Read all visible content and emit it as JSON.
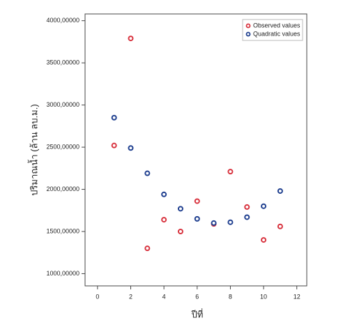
{
  "chart_data": {
    "type": "scatter",
    "x_label": "ปีที่",
    "y_label": "ปริมาณน้ำ (ล้าน ลบ.ม.)",
    "x": [
      1,
      2,
      3,
      4,
      5,
      6,
      7,
      8,
      9,
      10,
      11
    ],
    "series": [
      {
        "name": "Observed values",
        "color": "#d8323e",
        "values": [
          2520,
          3790,
          1300,
          1640,
          1500,
          1860,
          1590,
          2210,
          1790,
          1400,
          1560
        ]
      },
      {
        "name": "Quadratic values",
        "color": "#1f3f8f",
        "values": [
          2850,
          2490,
          2190,
          1940,
          1770,
          1650,
          1600,
          1610,
          1670,
          1800,
          1980
        ]
      }
    ],
    "xlim": [
      -0.75,
      12.6
    ],
    "ylim": [
      855,
      4080
    ],
    "xticks": [
      0,
      2,
      4,
      6,
      8,
      10,
      12
    ],
    "yticks": [
      {
        "value": 1000,
        "label": "1000,00000"
      },
      {
        "value": 1500,
        "label": "1500,00000"
      },
      {
        "value": 2000,
        "label": "2000,00000"
      },
      {
        "value": 2500,
        "label": "2500,00000"
      },
      {
        "value": 3000,
        "label": "3000,00000"
      },
      {
        "value": 3500,
        "label": "3500,00000"
      },
      {
        "value": 4000,
        "label": "4000,00000"
      }
    ],
    "legend": "top-right"
  }
}
